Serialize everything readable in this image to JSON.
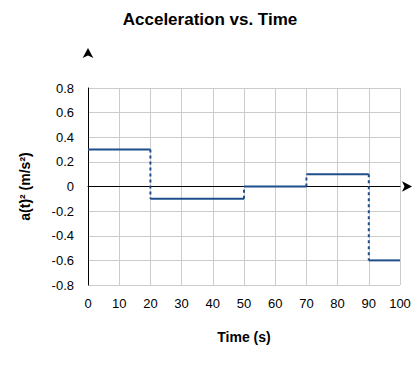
{
  "chart_data": {
    "type": "line",
    "title": "Acceleration vs. Time",
    "x_label": "Time (s)",
    "y_label": "a(t)² (m/s²)",
    "x": [
      0,
      20,
      50,
      70,
      90,
      100
    ],
    "values": [
      0.3,
      -0.1,
      0,
      0.1,
      -0.6,
      -0.6
    ],
    "color": "#1f4e8c",
    "xlim": [
      0,
      100
    ],
    "xticks": [
      0,
      10,
      20,
      30,
      40,
      50,
      60,
      70,
      80,
      90,
      100
    ],
    "ylim": [
      -0.8,
      0.8
    ],
    "yticks": [
      -0.8,
      -0.6,
      -0.4,
      -0.2,
      0,
      0.2,
      0.4,
      0.6,
      0.8
    ],
    "grid": true
  }
}
